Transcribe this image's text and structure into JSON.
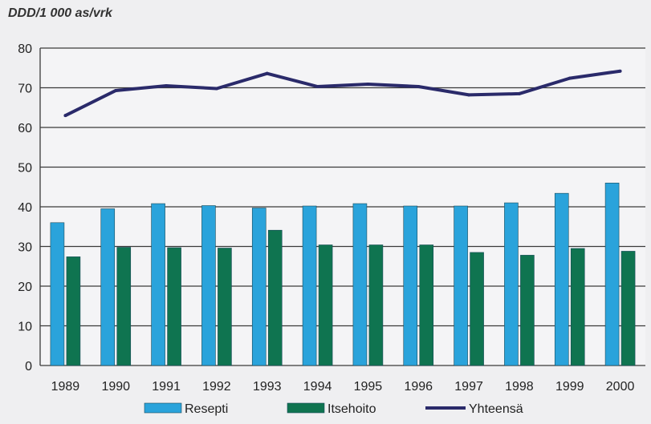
{
  "chart_data": {
    "type": "bar+line",
    "unit_label": "DDD/1 000 as/vrk",
    "categories": [
      "1989",
      "1990",
      "1991",
      "1992",
      "1993",
      "1994",
      "1995",
      "1996",
      "1997",
      "1998",
      "1999",
      "2000"
    ],
    "ylim": [
      0,
      80
    ],
    "yticks": [
      "0",
      "10",
      "20",
      "30",
      "40",
      "50",
      "60",
      "70",
      "80"
    ],
    "grid": true,
    "legend_position": "bottom",
    "series": [
      {
        "name": "Resepti",
        "kind": "bar",
        "color": "#2aa3db",
        "values": [
          36,
          39.5,
          40.8,
          40.3,
          39.7,
          40.2,
          40.8,
          40.2,
          40.2,
          41,
          43.4,
          46
        ]
      },
      {
        "name": "Itsehoito",
        "kind": "bar",
        "color": "#0f7450",
        "values": [
          27.4,
          29.8,
          29.7,
          29.6,
          34.1,
          30.4,
          30.4,
          30.4,
          28.5,
          27.8,
          29.5,
          28.8
        ]
      },
      {
        "name": "Yhteensä",
        "kind": "line",
        "color": "#2a2a6a",
        "values": [
          63,
          69.3,
          70.5,
          69.8,
          73.6,
          70.3,
          70.9,
          70.3,
          68.2,
          68.5,
          72.4,
          74.2
        ]
      }
    ]
  }
}
